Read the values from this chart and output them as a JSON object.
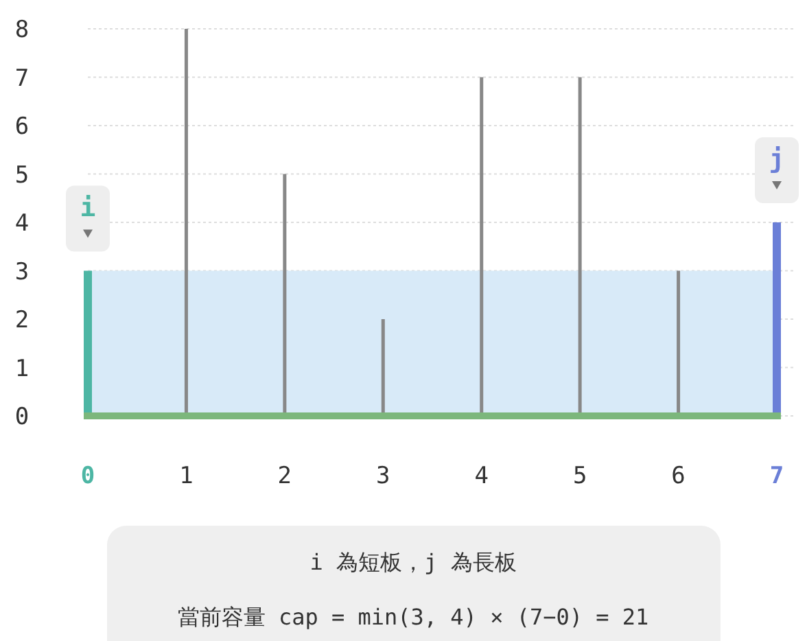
{
  "chart_data": {
    "type": "bar",
    "categories": [
      "0",
      "1",
      "2",
      "3",
      "4",
      "5",
      "6",
      "7"
    ],
    "values": [
      3,
      8,
      5,
      2,
      7,
      7,
      3,
      4
    ],
    "colors": [
      "#4db6a4",
      "#888888",
      "#888888",
      "#888888",
      "#888888",
      "#888888",
      "#888888",
      "#6b7fd7"
    ],
    "ylim": [
      0,
      8
    ],
    "yticks": [
      0,
      1,
      2,
      3,
      4,
      5,
      6,
      7,
      8
    ],
    "grid": "y",
    "bands": [
      {
        "axis": "y",
        "from": 0,
        "to": 3,
        "color": "#d8eaf8"
      }
    ],
    "annotations": [
      {
        "text": "i",
        "x": "0",
        "y": 3
      },
      {
        "text": "j",
        "x": "7",
        "y": 4
      },
      "i 為短板，j 為長板",
      "當前容量 cap = min(3, 4) × (7−0) = 21"
    ]
  }
}
